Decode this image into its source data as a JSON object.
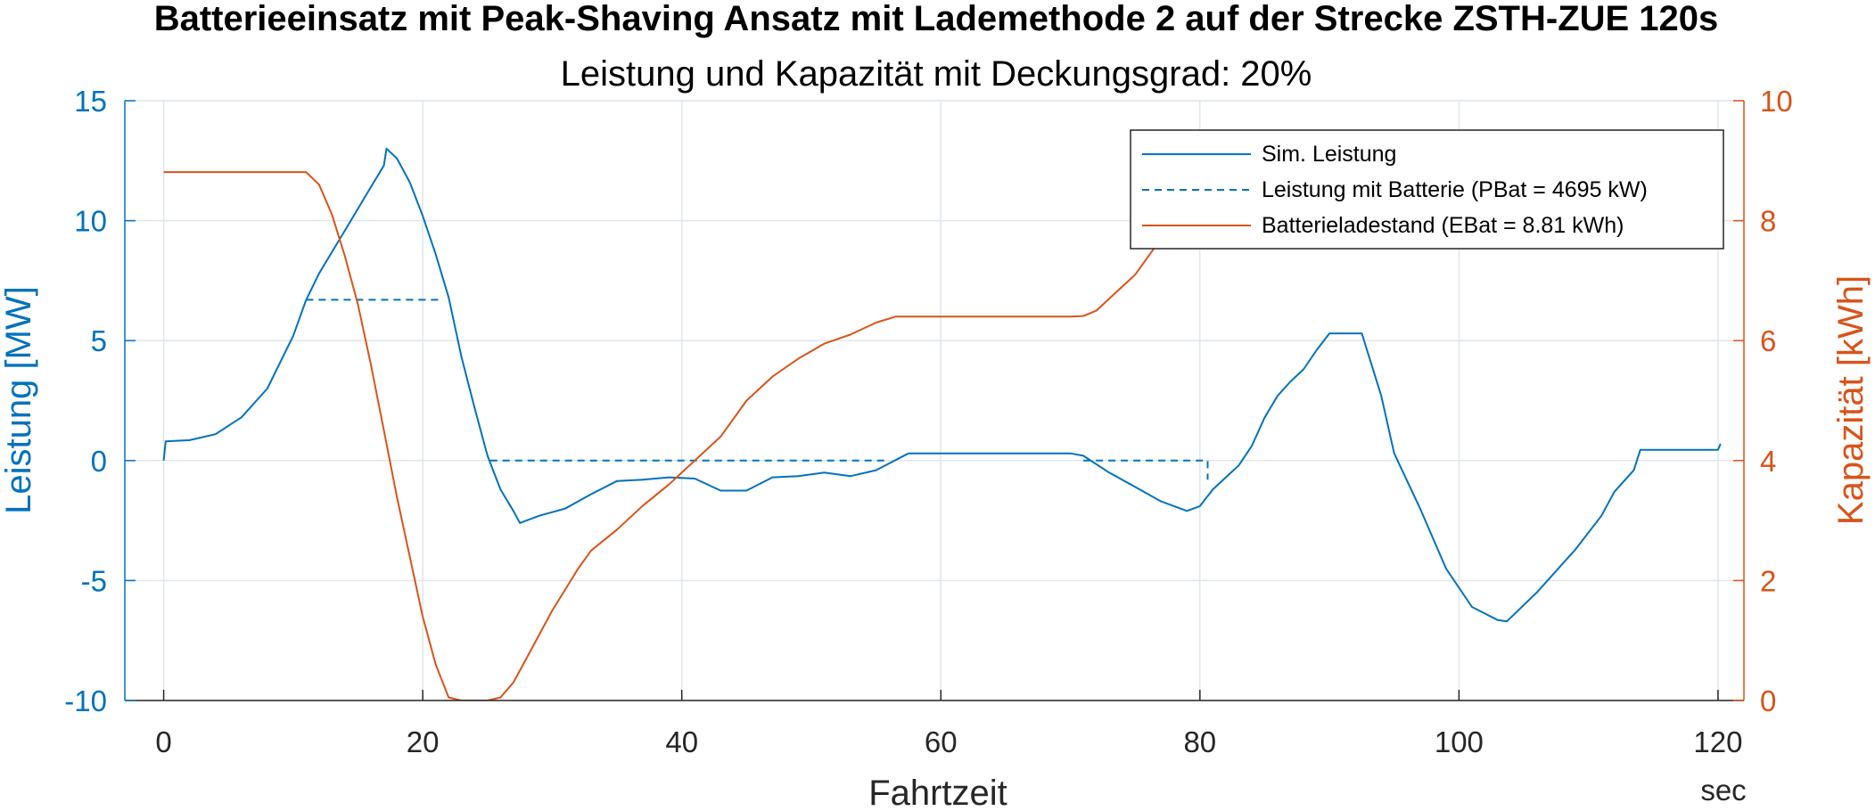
{
  "chart_data": {
    "type": "line",
    "title": "Batterieeinsatz mit Peak-Shaving Ansatz mit Lademethode 2 auf der Strecke ZSTH-ZUE 120s",
    "subtitle": "Leistung und Kapazität mit Deckungsgrad: 20%",
    "xlabel": "Fahrtzeit",
    "xunit": "sec",
    "ylabel_left": "Leistung [MW]",
    "ylabel_right": "Kapazität [kWh]",
    "xlim": [
      -3,
      122
    ],
    "ylim_left": [
      -10,
      15
    ],
    "ylim_right": [
      0,
      10
    ],
    "xticks": [
      0,
      20,
      40,
      60,
      80,
      100,
      120
    ],
    "yticks_left": [
      -10,
      -5,
      0,
      5,
      10,
      15
    ],
    "yticks_right": [
      0,
      2,
      4,
      6,
      8,
      10
    ],
    "grid": true,
    "legend_position": "top-right",
    "colors": {
      "left_axis": "#0072BD",
      "right_axis": "#D95319"
    },
    "series": [
      {
        "name": "Sim. Leistung",
        "axis": "left",
        "style": "solid",
        "color": "#0072BD",
        "points": [
          [
            0,
            0
          ],
          [
            0.15,
            0.8
          ],
          [
            2,
            0.85
          ],
          [
            4,
            1.1
          ],
          [
            6,
            1.8
          ],
          [
            8,
            3
          ],
          [
            10,
            5.2
          ],
          [
            11,
            6.7
          ],
          [
            12,
            7.8
          ],
          [
            13,
            8.7
          ],
          [
            14,
            9.6
          ],
          [
            15,
            10.5
          ],
          [
            16,
            11.4
          ],
          [
            17,
            12.3
          ],
          [
            17.2,
            13.0
          ],
          [
            18,
            12.6
          ],
          [
            19,
            11.6
          ],
          [
            20,
            10.2
          ],
          [
            21,
            8.6
          ],
          [
            22,
            6.8
          ],
          [
            23,
            4.3
          ],
          [
            24,
            2.2
          ],
          [
            25,
            0.2
          ],
          [
            26,
            -1.2
          ],
          [
            27,
            -2.1
          ],
          [
            27.5,
            -2.6
          ],
          [
            29,
            -2.3
          ],
          [
            31,
            -2.0
          ],
          [
            33,
            -1.4
          ],
          [
            35,
            -0.85
          ],
          [
            37,
            -0.8
          ],
          [
            39,
            -0.7
          ],
          [
            41,
            -0.75
          ],
          [
            43,
            -1.25
          ],
          [
            45,
            -1.25
          ],
          [
            47,
            -0.7
          ],
          [
            49,
            -0.65
          ],
          [
            51,
            -0.5
          ],
          [
            53,
            -0.65
          ],
          [
            55,
            -0.4
          ],
          [
            57.5,
            0.3
          ],
          [
            62,
            0.3
          ],
          [
            66,
            0.3
          ],
          [
            70,
            0.3
          ],
          [
            71,
            0.2
          ],
          [
            73,
            -0.5
          ],
          [
            75,
            -1.1
          ],
          [
            77,
            -1.7
          ],
          [
            79,
            -2.1
          ],
          [
            80,
            -1.9
          ],
          [
            81,
            -1.2
          ],
          [
            82,
            -0.7
          ],
          [
            83,
            -0.2
          ],
          [
            84,
            0.6
          ],
          [
            85,
            1.8
          ],
          [
            86,
            2.7
          ],
          [
            87,
            3.3
          ],
          [
            88,
            3.8
          ],
          [
            89,
            4.6
          ],
          [
            90,
            5.3
          ],
          [
            92.5,
            5.3
          ],
          [
            94,
            2.7
          ],
          [
            95,
            0.3
          ],
          [
            97,
            -2.0
          ],
          [
            99,
            -4.5
          ],
          [
            101,
            -6.1
          ],
          [
            103,
            -6.65
          ],
          [
            103.7,
            -6.7
          ],
          [
            106,
            -5.5
          ],
          [
            109,
            -3.7
          ],
          [
            111,
            -2.3
          ],
          [
            112,
            -1.3
          ],
          [
            113.5,
            -0.4
          ],
          [
            114,
            0.45
          ],
          [
            120,
            0.45
          ],
          [
            120.2,
            0.7
          ]
        ]
      },
      {
        "name": "Leistung mit Batterie (PBat = 4695 kW)",
        "axis": "left",
        "style": "dashed",
        "color": "#0072BD",
        "segments": [
          [
            [
              11,
              6.7
            ],
            [
              21.5,
              6.7
            ]
          ],
          [
            [
              25.2,
              0
            ],
            [
              56,
              0
            ]
          ],
          [
            [
              71,
              0
            ],
            [
              80.6,
              0
            ],
            [
              80.6,
              -0.8
            ]
          ]
        ]
      },
      {
        "name": "Batterieladestand (EBat = 8.81 kWh)",
        "axis": "right",
        "style": "solid",
        "color": "#D95319",
        "points": [
          [
            0,
            8.81
          ],
          [
            11,
            8.81
          ],
          [
            12,
            8.6
          ],
          [
            13,
            8.1
          ],
          [
            14,
            7.4
          ],
          [
            15,
            6.6
          ],
          [
            16,
            5.6
          ],
          [
            17,
            4.5
          ],
          [
            18,
            3.4
          ],
          [
            19,
            2.4
          ],
          [
            20,
            1.4
          ],
          [
            21,
            0.6
          ],
          [
            22,
            0.05
          ],
          [
            23,
            0
          ],
          [
            25,
            0
          ],
          [
            26,
            0.05
          ],
          [
            27,
            0.3
          ],
          [
            28,
            0.7
          ],
          [
            29,
            1.1
          ],
          [
            30,
            1.5
          ],
          [
            31,
            1.85
          ],
          [
            32,
            2.2
          ],
          [
            33,
            2.5
          ],
          [
            35,
            2.85
          ],
          [
            37,
            3.25
          ],
          [
            39,
            3.6
          ],
          [
            41,
            4.0
          ],
          [
            43,
            4.4
          ],
          [
            45,
            5.0
          ],
          [
            47,
            5.4
          ],
          [
            49,
            5.7
          ],
          [
            51,
            5.95
          ],
          [
            53,
            6.1
          ],
          [
            55,
            6.3
          ],
          [
            56.5,
            6.4
          ],
          [
            70,
            6.4
          ],
          [
            71,
            6.41
          ],
          [
            72,
            6.5
          ],
          [
            73,
            6.7
          ],
          [
            75,
            7.1
          ],
          [
            77,
            7.7
          ],
          [
            78.5,
            8.2
          ]
        ]
      }
    ],
    "legend": [
      "Sim. Leistung",
      "Leistung mit Batterie (PBat = 4695 kW)",
      "Batterieladestand (EBat = 8.81 kWh)"
    ]
  }
}
